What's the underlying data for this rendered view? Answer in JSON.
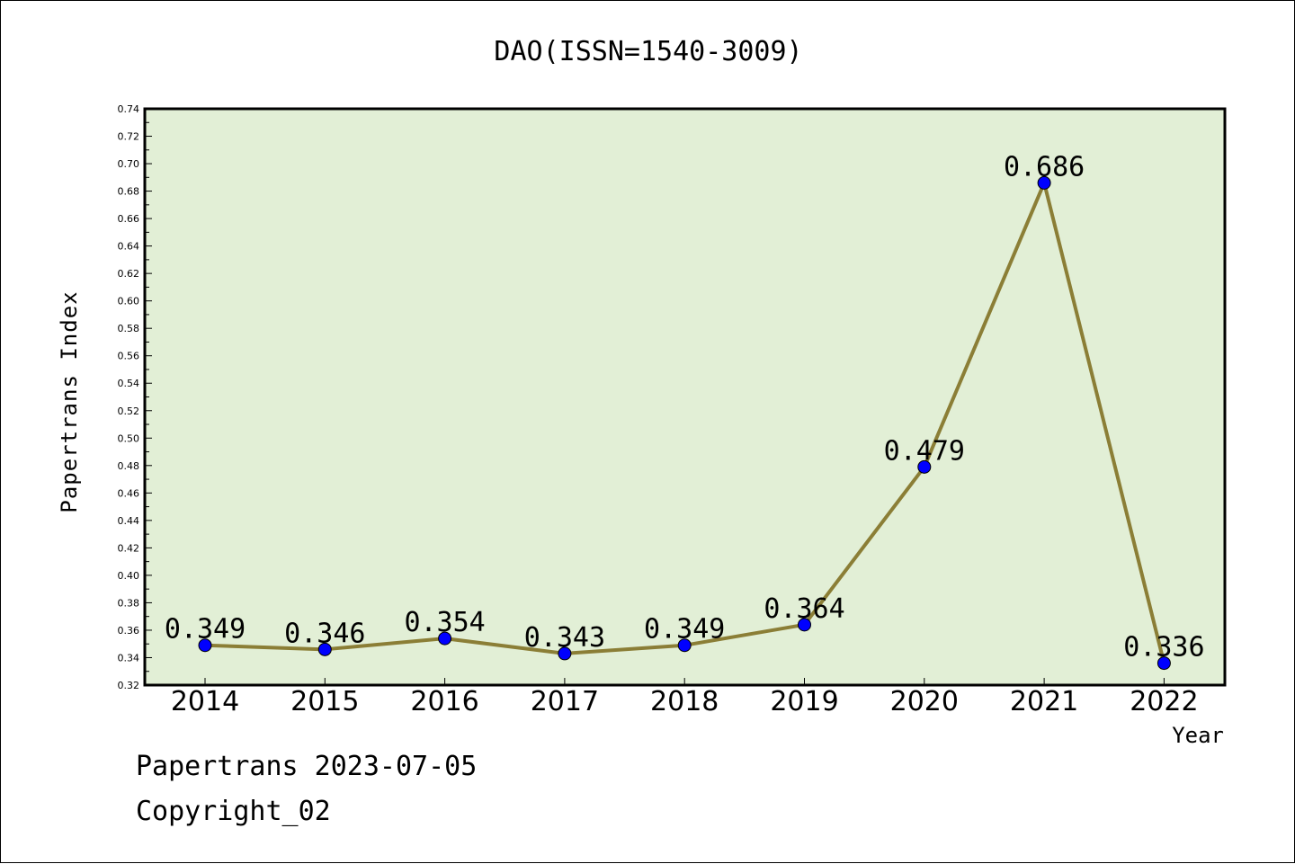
{
  "chart_data": {
    "type": "line",
    "title": "DAO(ISSN=1540-3009)",
    "xlabel": "Year",
    "ylabel": "Papertrans Index",
    "categories": [
      "2014",
      "2015",
      "2016",
      "2017",
      "2018",
      "2019",
      "2020",
      "2021",
      "2022"
    ],
    "values": [
      0.349,
      0.346,
      0.354,
      0.343,
      0.349,
      0.364,
      0.479,
      0.686,
      0.336
    ],
    "data_labels": [
      "0.349",
      "0.346",
      "0.354",
      "0.343",
      "0.349",
      "0.364",
      "0.479",
      "0.686",
      "0.336"
    ],
    "ylim": [
      0.32,
      0.74
    ],
    "yticks": [
      "0.32",
      "0.34",
      "0.36",
      "0.38",
      "0.40",
      "0.42",
      "0.44",
      "0.46",
      "0.48",
      "0.50",
      "0.52",
      "0.54",
      "0.56",
      "0.58",
      "0.60",
      "0.62",
      "0.64",
      "0.66",
      "0.68",
      "0.70",
      "0.72",
      "0.74"
    ],
    "grid": false,
    "colors": {
      "plot_background": "#e2efd6",
      "line": "#8b7e36",
      "marker": "#0000ff"
    }
  },
  "footer": {
    "line1": "Papertrans 2023-07-05",
    "line2": "Copyright_02"
  }
}
